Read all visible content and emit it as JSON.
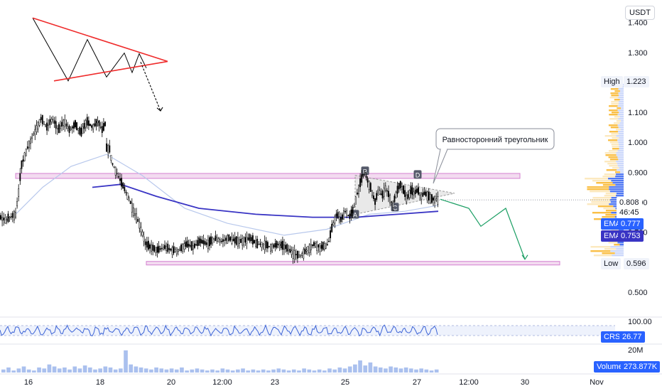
{
  "currency": "USDT",
  "chart_data": [
    {
      "type": "candlestick",
      "pane": "price",
      "x_ticks": [
        "16",
        "18",
        "20",
        "12:00",
        "23",
        "25",
        "27",
        "12:00",
        "30",
        "Nov"
      ],
      "y_ticks": [
        "1.400",
        "1.300",
        "1.200",
        "1.100",
        "1.000",
        "0.900",
        "0.800",
        "0.700",
        "0.600",
        "0.500"
      ],
      "ylim": [
        0.455,
        1.475
      ],
      "close_series": [
        [
          0,
          0.75
        ],
        [
          8,
          0.74
        ],
        [
          14,
          0.75
        ],
        [
          22,
          0.76
        ],
        [
          26,
          0.83
        ],
        [
          30,
          0.92
        ],
        [
          34,
          0.95
        ],
        [
          40,
          0.99
        ],
        [
          46,
          1.02
        ],
        [
          52,
          1.05
        ],
        [
          58,
          1.08
        ],
        [
          66,
          1.05
        ],
        [
          74,
          1.08
        ],
        [
          82,
          1.04
        ],
        [
          90,
          1.07
        ],
        [
          98,
          1.04
        ],
        [
          106,
          1.06
        ],
        [
          114,
          1.03
        ],
        [
          122,
          1.07
        ],
        [
          130,
          1.05
        ],
        [
          138,
          1.07
        ],
        [
          144,
          1.04
        ],
        [
          148,
          1.06
        ],
        [
          150,
          0.98
        ],
        [
          154,
          0.98
        ],
        [
          158,
          0.93
        ],
        [
          164,
          0.9
        ],
        [
          170,
          0.87
        ],
        [
          176,
          0.84
        ],
        [
          182,
          0.81
        ],
        [
          188,
          0.77
        ],
        [
          194,
          0.74
        ],
        [
          200,
          0.7
        ],
        [
          205,
          0.66
        ],
        [
          212,
          0.65
        ],
        [
          222,
          0.64
        ],
        [
          232,
          0.65
        ],
        [
          242,
          0.64
        ],
        [
          252,
          0.64
        ],
        [
          262,
          0.66
        ],
        [
          272,
          0.65
        ],
        [
          282,
          0.67
        ],
        [
          292,
          0.66
        ],
        [
          302,
          0.68
        ],
        [
          312,
          0.67
        ],
        [
          322,
          0.68
        ],
        [
          332,
          0.67
        ],
        [
          342,
          0.67
        ],
        [
          352,
          0.68
        ],
        [
          362,
          0.66
        ],
        [
          372,
          0.66
        ],
        [
          382,
          0.65
        ],
        [
          392,
          0.66
        ],
        [
          402,
          0.65
        ],
        [
          412,
          0.63
        ],
        [
          422,
          0.62
        ],
        [
          432,
          0.64
        ],
        [
          442,
          0.66
        ],
        [
          452,
          0.65
        ],
        [
          462,
          0.66
        ],
        [
          468,
          0.72
        ],
        [
          474,
          0.76
        ],
        [
          480,
          0.74
        ],
        [
          486,
          0.77
        ],
        [
          492,
          0.75
        ],
        [
          498,
          0.78
        ],
        [
          503,
          0.83
        ],
        [
          508,
          0.87
        ],
        [
          513,
          0.9
        ],
        [
          518,
          0.87
        ],
        [
          523,
          0.84
        ],
        [
          528,
          0.8
        ],
        [
          533,
          0.84
        ],
        [
          538,
          0.82
        ],
        [
          543,
          0.85
        ],
        [
          548,
          0.82
        ],
        [
          553,
          0.79
        ],
        [
          558,
          0.83
        ],
        [
          563,
          0.86
        ],
        [
          568,
          0.84
        ],
        [
          573,
          0.81
        ],
        [
          578,
          0.84
        ],
        [
          583,
          0.83
        ],
        [
          588,
          0.84
        ],
        [
          593,
          0.82
        ],
        [
          598,
          0.83
        ],
        [
          603,
          0.82
        ],
        [
          608,
          0.81
        ],
        [
          613,
          0.81
        ],
        [
          617,
          0.808
        ]
      ],
      "ema_series": [
        {
          "name": "EMA",
          "value": 0.777,
          "color": "#b8c8ec",
          "points": [
            [
              22,
              0.76
            ],
            [
              60,
              0.85
            ],
            [
              100,
              0.92
            ],
            [
              150,
              0.96
            ],
            [
              200,
              0.89
            ],
            [
              260,
              0.78
            ],
            [
              320,
              0.73
            ],
            [
              400,
              0.69
            ],
            [
              460,
              0.71
            ],
            [
              520,
              0.76
            ],
            [
              570,
              0.77
            ],
            [
              617,
              0.79
            ]
          ]
        },
        {
          "name": "EMA",
          "value": 0.753,
          "color": "#3934c4",
          "points": [
            [
              130,
              0.85
            ],
            [
              170,
              0.86
            ],
            [
              220,
              0.82
            ],
            [
              280,
              0.78
            ],
            [
              360,
              0.76
            ],
            [
              440,
              0.75
            ],
            [
              500,
              0.75
            ],
            [
              560,
              0.76
            ],
            [
              617,
              0.77
            ]
          ]
        }
      ],
      "annotations": {
        "triangle_label": "Равносторонний треугольник",
        "pattern_points": [
          "A",
          "B",
          "C",
          "D"
        ],
        "levels": [
          {
            "name": "High",
            "value": 1.223
          },
          {
            "name": "Low",
            "value": 0.596
          }
        ],
        "resistance_zone": 0.888,
        "support_zone": 0.598,
        "last_price": {
          "value": "0.808",
          "countdown": "46:45"
        },
        "zigzag_forecast": [
          [
            620,
            0.81
          ],
          [
            660,
            0.78
          ],
          [
            677,
            0.72
          ],
          [
            712,
            0.78
          ],
          [
            739,
            0.61
          ]
        ],
        "schematic_zigzag": [
          [
            46,
            1.415
          ],
          [
            96,
            1.205
          ],
          [
            123,
            1.343
          ],
          [
            150,
            1.218
          ],
          [
            175,
            1.298
          ],
          [
            186,
            1.233
          ],
          [
            196,
            1.296
          ],
          [
            206,
            1.248
          ]
        ]
      }
    },
    {
      "type": "line",
      "pane": "indicator",
      "name": "CRSI",
      "value": 26.77,
      "y_ticks": [
        "100.00"
      ]
    },
    {
      "type": "bar",
      "pane": "volume",
      "name": "Volume",
      "value": "273.877K",
      "y_ticks": [
        "20M"
      ],
      "values": [
        3,
        5,
        2,
        4,
        6,
        3,
        2,
        5,
        4,
        8,
        6,
        4,
        5,
        3,
        6,
        4,
        7,
        5,
        3,
        4,
        6,
        5,
        3,
        4,
        22,
        8,
        6,
        5,
        4,
        3,
        5,
        4,
        3,
        4,
        3,
        5,
        2,
        3,
        4,
        3,
        2,
        3,
        2,
        4,
        3,
        2,
        3,
        4,
        2,
        3,
        2,
        3,
        2,
        3,
        4,
        3,
        2,
        3,
        2,
        4,
        3,
        2,
        3,
        2,
        4,
        3,
        5,
        4,
        6,
        8,
        12,
        7,
        10,
        6,
        5,
        4,
        6,
        5,
        4,
        5,
        4,
        3,
        4,
        3,
        2,
        3
      ]
    }
  ],
  "colors": {
    "candle": "#000000",
    "triangle_red": "#ef2b2b",
    "zigzag": "#000000",
    "forecast": "#1a9e63",
    "zone_fill": "#f3dbf0",
    "zone_stroke": "#d481d1",
    "ema_fast": "#b8c8ec",
    "ema_slow": "#3934c4",
    "crsi": "#3a62d6",
    "volume": "#aac0ee",
    "label_blue": "#2962ff",
    "profile_yellow": "#f9b832",
    "profile_blue": "#3d69f2"
  }
}
